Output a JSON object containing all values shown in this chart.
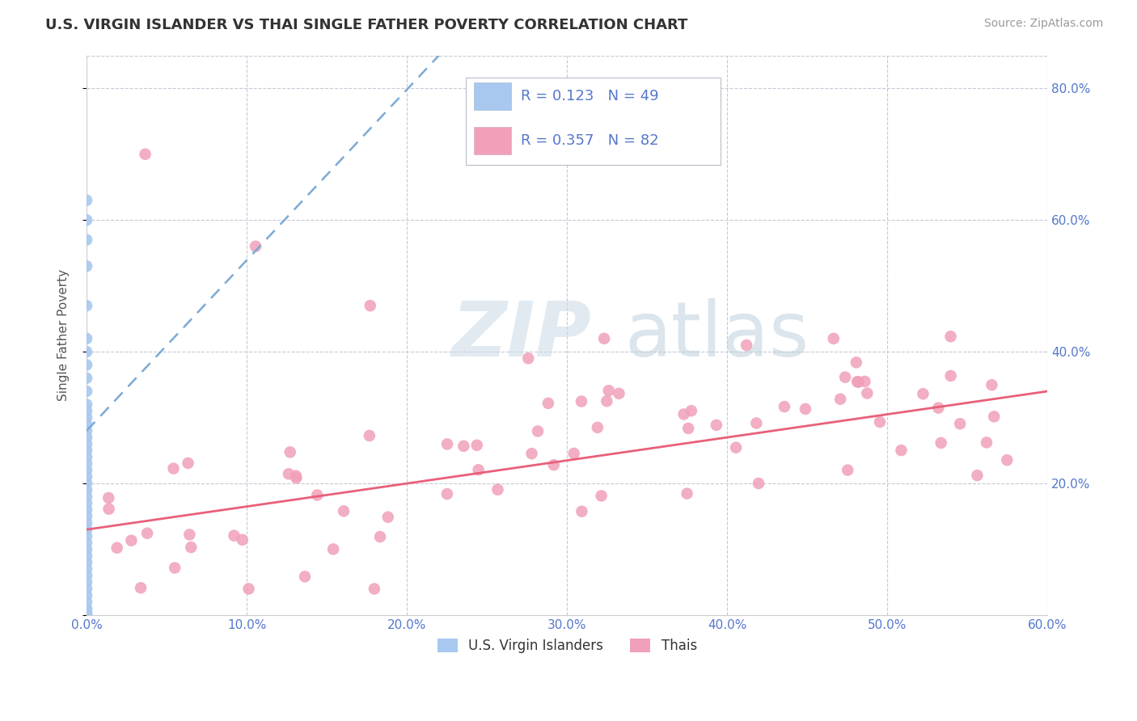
{
  "title": "U.S. VIRGIN ISLANDER VS THAI SINGLE FATHER POVERTY CORRELATION CHART",
  "source": "Source: ZipAtlas.com",
  "ylabel": "Single Father Poverty",
  "xlim": [
    0.0,
    0.6
  ],
  "ylim": [
    0.0,
    0.85
  ],
  "xticks": [
    0.0,
    0.1,
    0.2,
    0.3,
    0.4,
    0.5,
    0.6
  ],
  "xtick_labels": [
    "0.0%",
    "10.0%",
    "20.0%",
    "30.0%",
    "40.0%",
    "50.0%",
    "60.0%"
  ],
  "yticks": [
    0.0,
    0.2,
    0.4,
    0.6,
    0.8
  ],
  "ytick_labels_right": [
    "",
    "20.0%",
    "40.0%",
    "60.0%",
    "80.0%"
  ],
  "legend_labels": [
    "U.S. Virgin Islanders",
    "Thais"
  ],
  "r_virgin": 0.123,
  "n_virgin": 49,
  "r_thai": 0.357,
  "n_thai": 82,
  "virgin_color": "#a8c8f0",
  "thai_color": "#f0a0b8",
  "virgin_line_color": "#7baad4",
  "thai_line_color": "#e8607a",
  "background_color": "#ffffff",
  "grid_color": "#c8c8d8",
  "watermark_zip": "ZIP",
  "watermark_atlas": "atlas",
  "title_color": "#333333",
  "source_color": "#999999",
  "tick_color": "#5577cc",
  "ylabel_color": "#555555"
}
